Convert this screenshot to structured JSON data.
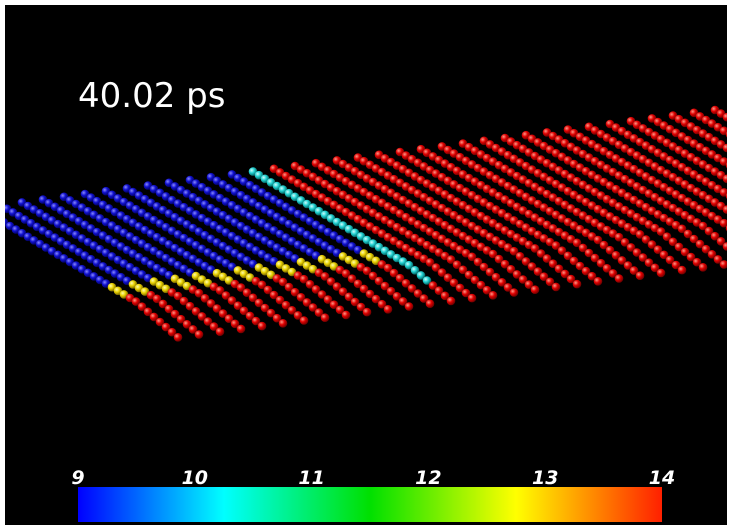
{
  "time_label": "40.02 ps",
  "colorbar": {
    "range": [
      9,
      14
    ],
    "ticks": [
      9,
      10,
      11,
      12,
      13,
      14
    ],
    "colors": [
      "#0000ff",
      "#00ffff",
      "#00e000",
      "#ffff00",
      "#ff2000"
    ]
  }
}
